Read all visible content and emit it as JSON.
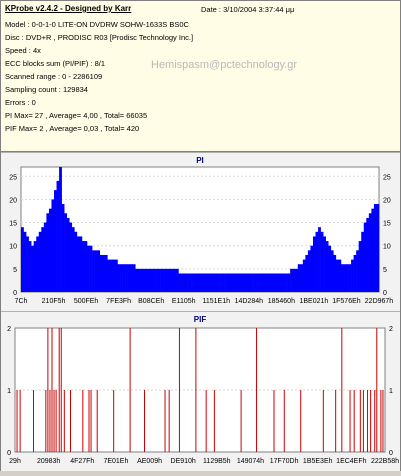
{
  "header": {
    "title": "KProbe v2.4.2 - Designed by Karr",
    "date": "Date : 3/10/2004 3:37:44 μμ",
    "lines": [
      "Model : 0-0-1-0 LITE-ON DVDRW SOHW-1633S BS0C",
      "Disc : DVD+R , PRODISC R03 [Prodisc Technology Inc.]",
      "Speed : 4x",
      "ECC blocks sum (PI/PIF) : 8/1",
      "Scanned range : 0 - 2286109",
      "Sampling count : 129834",
      "Errors : 0",
      "PI Max= 27 , Average= 4,00 , Total= 66035",
      "PIF Max= 2 , Average= 0,03 , Total= 420"
    ],
    "watermark": "Hemispasm@pctechnology.gr"
  },
  "chart_data": [
    {
      "type": "area",
      "title": "PI",
      "ylim": [
        0,
        27
      ],
      "yticks": [
        0,
        5,
        10,
        15,
        20,
        25
      ],
      "xtick_labels": [
        "7Ch",
        "210F5h",
        "500FEh",
        "7FE3Fh",
        "B08CEh",
        "E1105h",
        "1151E1h",
        "14D284h",
        "185460h",
        "1BE021h",
        "1F576Eh",
        "22D967h"
      ],
      "color": "#0000ff",
      "values": [
        14,
        13,
        12,
        11,
        10,
        11,
        12,
        13,
        14,
        15,
        17,
        18,
        20,
        22,
        24,
        27,
        19,
        17,
        16,
        15,
        14,
        13,
        12,
        12,
        11,
        11,
        10,
        10,
        9,
        9,
        9,
        8,
        8,
        8,
        7,
        7,
        7,
        7,
        6,
        6,
        6,
        6,
        6,
        6,
        6,
        5,
        5,
        5,
        5,
        5,
        5,
        5,
        5,
        5,
        5,
        5,
        5,
        5,
        5,
        5,
        5,
        5,
        4,
        4,
        4,
        4,
        4,
        4,
        4,
        4,
        4,
        4,
        4,
        4,
        4,
        4,
        4,
        4,
        4,
        4,
        4,
        4,
        4,
        4,
        4,
        4,
        4,
        4,
        4,
        4,
        4,
        4,
        4,
        4,
        4,
        4,
        4,
        4,
        4,
        4,
        4,
        4,
        4,
        4,
        4,
        4,
        5,
        5,
        5,
        6,
        6,
        7,
        8,
        9,
        10,
        12,
        13,
        14,
        13,
        12,
        11,
        10,
        9,
        8,
        7,
        7,
        6,
        6,
        6,
        6,
        7,
        8,
        9,
        11,
        13,
        15,
        16,
        17,
        18,
        19,
        19
      ]
    },
    {
      "type": "bar",
      "title": "PIF",
      "ylim": [
        0,
        2
      ],
      "yticks": [
        0,
        1,
        2
      ],
      "xtick_labels": [
        "29h",
        "20983h",
        "4F27Fh",
        "7E01Eh",
        "AE009h",
        "DE910h",
        "1129B5h",
        "149074h",
        "17F70Dh",
        "1B5E3Eh",
        "1EC4EFh",
        "222B58h"
      ],
      "color": "#cc0000",
      "spikes": [
        {
          "x": 2,
          "v": 1
        },
        {
          "x": 5,
          "v": 1
        },
        {
          "x": 18,
          "v": 1
        },
        {
          "x": 30,
          "v": 1
        },
        {
          "x": 32,
          "v": 2
        },
        {
          "x": 34,
          "v": 1
        },
        {
          "x": 36,
          "v": 2
        },
        {
          "x": 38,
          "v": 1
        },
        {
          "x": 40,
          "v": 1
        },
        {
          "x": 43,
          "v": 2
        },
        {
          "x": 45,
          "v": 2
        },
        {
          "x": 48,
          "v": 1
        },
        {
          "x": 54,
          "v": 1
        },
        {
          "x": 66,
          "v": 1
        },
        {
          "x": 72,
          "v": 1
        },
        {
          "x": 74,
          "v": 1
        },
        {
          "x": 80,
          "v": 1
        },
        {
          "x": 96,
          "v": 1
        },
        {
          "x": 112,
          "v": 2
        },
        {
          "x": 126,
          "v": 1
        },
        {
          "x": 146,
          "v": 1
        },
        {
          "x": 150,
          "v": 1
        },
        {
          "x": 160,
          "v": 2
        },
        {
          "x": 176,
          "v": 2
        },
        {
          "x": 186,
          "v": 1
        },
        {
          "x": 194,
          "v": 1
        },
        {
          "x": 220,
          "v": 1
        },
        {
          "x": 235,
          "v": 2
        },
        {
          "x": 252,
          "v": 1
        },
        {
          "x": 262,
          "v": 1
        },
        {
          "x": 278,
          "v": 1
        },
        {
          "x": 300,
          "v": 1
        },
        {
          "x": 312,
          "v": 1
        },
        {
          "x": 318,
          "v": 2
        },
        {
          "x": 326,
          "v": 1
        },
        {
          "x": 330,
          "v": 1
        },
        {
          "x": 336,
          "v": 1
        },
        {
          "x": 339,
          "v": 1
        },
        {
          "x": 343,
          "v": 1
        },
        {
          "x": 346,
          "v": 1
        },
        {
          "x": 350,
          "v": 1
        },
        {
          "x": 352,
          "v": 2
        },
        {
          "x": 356,
          "v": 1
        },
        {
          "x": 358,
          "v": 1
        }
      ]
    }
  ]
}
